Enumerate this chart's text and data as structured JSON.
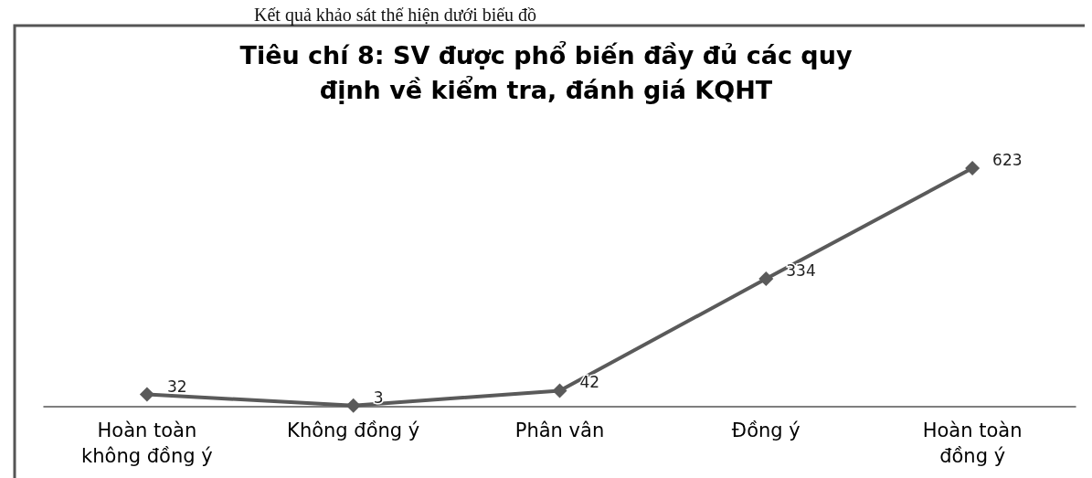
{
  "chart_data": {
    "type": "line",
    "title": "Tiêu chí 8: SV được phổ biến đầy đủ các quy\nđịnh về kiểm tra, đánh giá KQHT",
    "annotations": [
      "Kết quả khảo sát thể hiện dưới biểu đồ"
    ],
    "categories": [
      "Hoàn toàn\nkhông đồng ý",
      "Không đồng ý",
      "Phân vân",
      "Đồng ý",
      "Hoàn toàn\nđồng ý"
    ],
    "series": [
      {
        "color": "#5a5a5a",
        "values": [
          32,
          3,
          42,
          334,
          623
        ]
      }
    ],
    "data_labels": true,
    "marker": "diamond",
    "line_style": "solid",
    "grid": false
  }
}
